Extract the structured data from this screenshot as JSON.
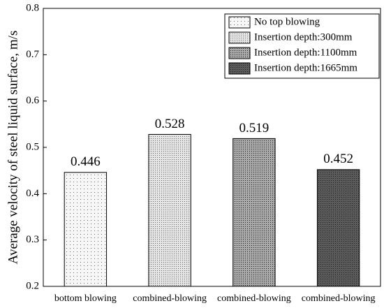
{
  "chart_data": {
    "type": "bar",
    "y_label": "Average velocity of steel liquid surface, m/s",
    "categories": [
      "bottom blowing",
      "combined-blowing",
      "combined-blowing",
      "combined-blowing"
    ],
    "values": [
      0.446,
      0.528,
      0.519,
      0.452
    ],
    "legend": [
      "No top blowing",
      "Insertion depth:300mm",
      "Insertion depth:1100mm",
      "Insertion depth:1665mm"
    ],
    "colors": [
      "#f7f7f7",
      "#e4e4e4",
      "#a8a8a8",
      "#5a5a5a"
    ],
    "legend_position": "upper right",
    "ylim": [
      0.2,
      0.8
    ],
    "yticks": [
      0.2,
      0.3,
      0.4,
      0.5,
      0.6,
      0.7,
      0.8
    ]
  }
}
